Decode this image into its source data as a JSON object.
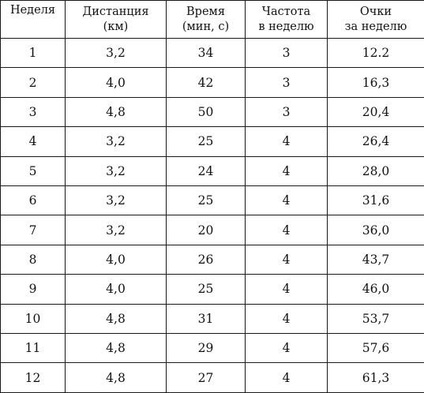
{
  "table": {
    "headers": [
      {
        "line1": "Неделя",
        "line2": ""
      },
      {
        "line1": "Дистанция",
        "line2": "(км)"
      },
      {
        "line1": "Время",
        "line2": "(мин, с)"
      },
      {
        "line1": "Частота",
        "line2": "в неделю"
      },
      {
        "line1": "Очки",
        "line2": "за неделю"
      }
    ],
    "rows": [
      [
        "1",
        "3,2",
        "34",
        "3",
        "12.2"
      ],
      [
        "2",
        "4,0",
        "42",
        "3",
        "16,3"
      ],
      [
        "3",
        "4,8",
        "50",
        "3",
        "20,4"
      ],
      [
        "4",
        "3,2",
        "25",
        "4",
        "26,4"
      ],
      [
        "5",
        "3,2",
        "24",
        "4",
        "28,0"
      ],
      [
        "6",
        "3,2",
        "25",
        "4",
        "31,6"
      ],
      [
        "7",
        "3,2",
        "20",
        "4",
        "36,0"
      ],
      [
        "8",
        "4,0",
        "26",
        "4",
        "43,7"
      ],
      [
        "9",
        "4,0",
        "25",
        "4",
        "46,0"
      ],
      [
        "10",
        "4,8",
        "31",
        "4",
        "53,7"
      ],
      [
        "11",
        "4,8",
        "29",
        "4",
        "57,6"
      ],
      [
        "12",
        "4,8",
        "27",
        "4",
        "61,3"
      ]
    ]
  }
}
